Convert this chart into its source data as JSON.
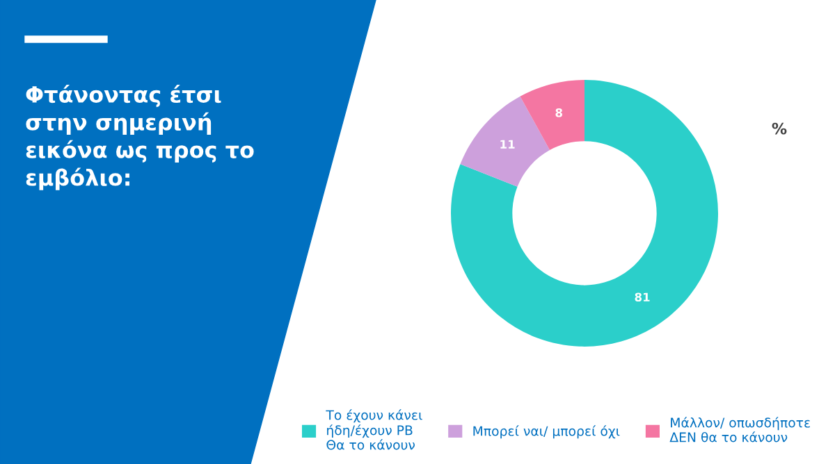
{
  "chart_data": {
    "type": "donut",
    "title": "Φτάνοντας έτσι\nστην σημερινή\nεικόνα ως προς το\nεμβόλιο:",
    "categories": [
      "Το έχουν κάνει\nήδη/έχουν ΡΒ\nΘα το κάνουν",
      "Μπορεί ναι/ μπορεί όχι",
      "Μάλλον/ οπωσδήποτε\nΔΕΝ θα το κάνουν"
    ],
    "values": [
      81,
      11,
      8
    ],
    "colors": [
      "#2bcfca",
      "#cda0dc",
      "#f476a2"
    ],
    "data_labels": true,
    "legend": "bottom",
    "annotations": [
      "%"
    ]
  }
}
